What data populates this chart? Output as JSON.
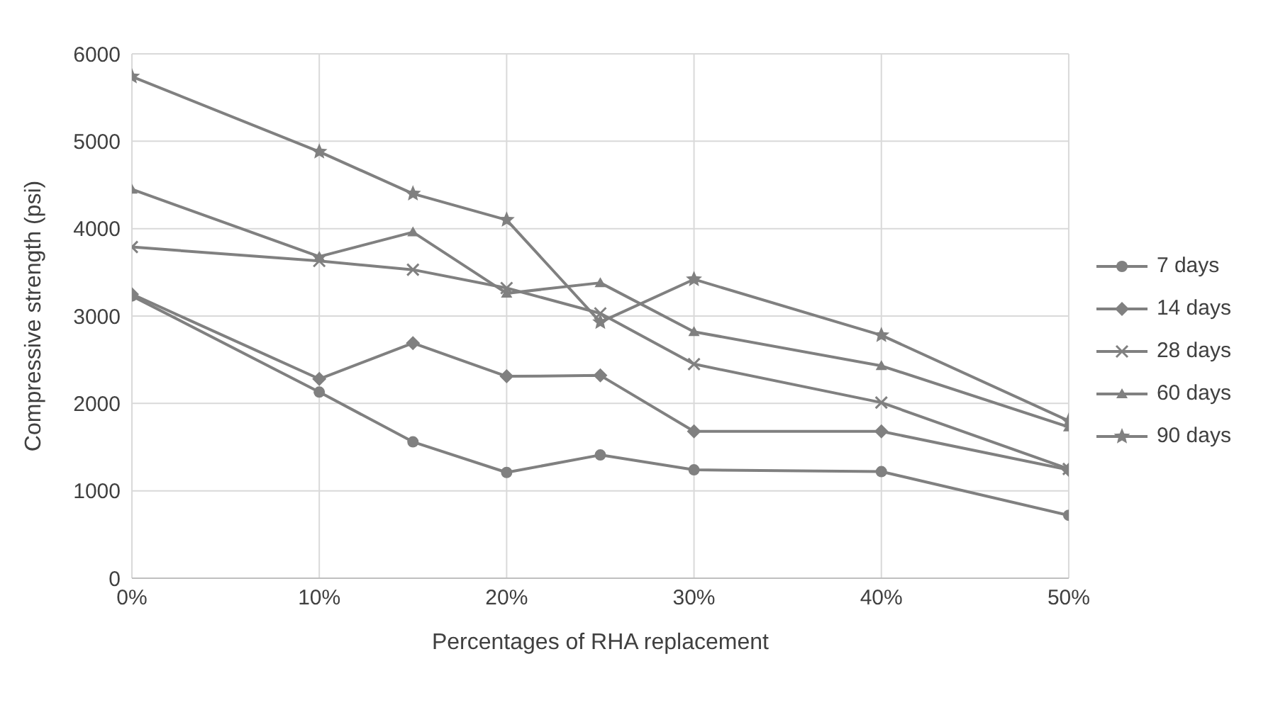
{
  "chart_data": {
    "type": "line",
    "xlabel": "Percentages of RHA replacement",
    "ylabel": "Compressive strength (psi)",
    "x": [
      0,
      10,
      15,
      20,
      25,
      30,
      40,
      50
    ],
    "series": [
      {
        "name": "7 days",
        "color": "#808080",
        "marker": "circle",
        "values": [
          3230,
          2130,
          1560,
          1210,
          1410,
          1240,
          1220,
          720
        ]
      },
      {
        "name": "14 days",
        "color": "#808080",
        "marker": "diamond",
        "values": [
          3250,
          2280,
          2690,
          2310,
          2320,
          1680,
          1680,
          1240
        ]
      },
      {
        "name": "28 days",
        "color": "#808080",
        "marker": "cross",
        "values": [
          3790,
          3630,
          3530,
          3320,
          3030,
          2450,
          2010,
          1250
        ]
      },
      {
        "name": "60 days",
        "color": "#808080",
        "marker": "triangle",
        "values": [
          4450,
          3680,
          3960,
          3260,
          3380,
          2820,
          2430,
          1730
        ]
      },
      {
        "name": "90 days",
        "color": "#808080",
        "marker": "star",
        "values": [
          5740,
          4880,
          4400,
          4100,
          2930,
          3420,
          2780,
          1800
        ]
      }
    ],
    "xlim": [
      0,
      50
    ],
    "xticks": [
      {
        "value": 0,
        "label": "0%"
      },
      {
        "value": 10,
        "label": "10%"
      },
      {
        "value": 20,
        "label": "20%"
      },
      {
        "value": 30,
        "label": "30%"
      },
      {
        "value": 40,
        "label": "40%"
      },
      {
        "value": 50,
        "label": "50%"
      }
    ],
    "ylim": [
      0,
      6000
    ],
    "yticks": [
      0,
      1000,
      2000,
      3000,
      4000,
      5000,
      6000
    ],
    "grid": true,
    "legend": "right",
    "line_style": "solid"
  }
}
